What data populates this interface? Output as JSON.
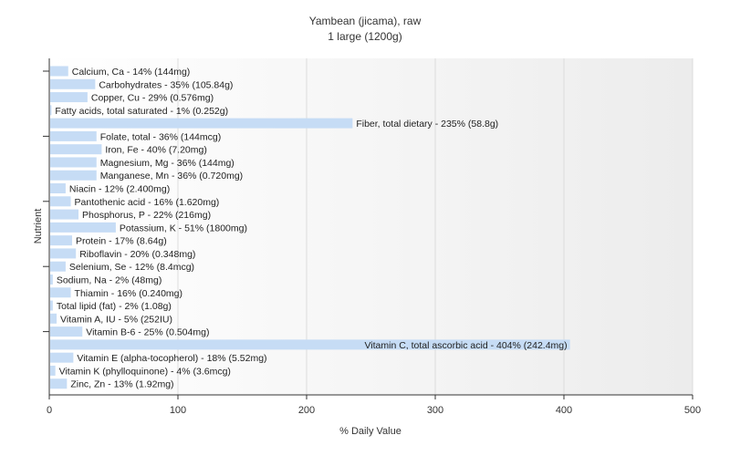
{
  "chart_data": {
    "type": "bar",
    "orientation": "horizontal",
    "title": "Yambean (jicama), raw",
    "subtitle": "1 large (1200g)",
    "xlabel": "% Daily Value",
    "ylabel": "Nutrient",
    "xlim": [
      0,
      500
    ],
    "xticks": [
      "0",
      "100",
      "200",
      "300",
      "400",
      "500"
    ],
    "grid": true,
    "bar_color": "#c6dcf5",
    "categories": [
      "Calcium, Ca",
      "Carbohydrates",
      "Copper, Cu",
      "Fatty acids, total saturated",
      "Fiber, total dietary",
      "Folate, total",
      "Iron, Fe",
      "Magnesium, Mg",
      "Manganese, Mn",
      "Niacin",
      "Pantothenic acid",
      "Phosphorus, P",
      "Potassium, K",
      "Protein",
      "Riboflavin",
      "Selenium, Se",
      "Sodium, Na",
      "Thiamin",
      "Total lipid (fat)",
      "Vitamin A, IU",
      "Vitamin B-6",
      "Vitamin C, total ascorbic acid",
      "Vitamin E (alpha-tocopherol)",
      "Vitamin K (phylloquinone)",
      "Zinc, Zn"
    ],
    "values": [
      14,
      35,
      29,
      1,
      235,
      36,
      40,
      36,
      36,
      12,
      16,
      22,
      51,
      17,
      20,
      12,
      2,
      16,
      2,
      5,
      25,
      404,
      18,
      4,
      13
    ],
    "labels": [
      "Calcium, Ca - 14% (144mg)",
      "Carbohydrates - 35% (105.84g)",
      "Copper, Cu - 29% (0.576mg)",
      "Fatty acids, total saturated - 1% (0.252g)",
      "Fiber, total dietary - 235% (58.8g)",
      "Folate, total - 36% (144mcg)",
      "Iron, Fe - 40% (7.20mg)",
      "Magnesium, Mg - 36% (144mg)",
      "Manganese, Mn - 36% (0.720mg)",
      "Niacin - 12% (2.400mg)",
      "Pantothenic acid - 16% (1.620mg)",
      "Phosphorus, P - 22% (216mg)",
      "Potassium, K - 51% (1800mg)",
      "Protein - 17% (8.64g)",
      "Riboflavin - 20% (0.348mg)",
      "Selenium, Se - 12% (8.4mcg)",
      "Sodium, Na - 2% (48mg)",
      "Thiamin - 16% (0.240mg)",
      "Total lipid (fat) - 2% (1.08g)",
      "Vitamin A, IU - 5% (252IU)",
      "Vitamin B-6 - 25% (0.504mg)",
      "Vitamin C, total ascorbic acid - 404% (242.4mg)",
      "Vitamin E (alpha-tocopherol) - 18% (5.52mg)",
      "Vitamin K (phylloquinone) - 4% (3.6mcg)",
      "Zinc, Zn - 13% (1.92mg)"
    ]
  }
}
